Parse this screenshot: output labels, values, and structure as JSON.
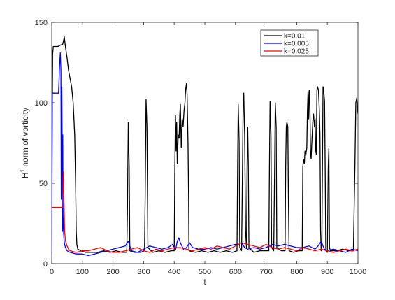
{
  "chart_data": {
    "type": "line",
    "xlabel": "t",
    "ylabel": "H¹ norm of vorticity",
    "ylabel_parts": {
      "pre": "H",
      "sup": "1",
      "post": " norm of vorticity"
    },
    "xlim": [
      0,
      1000
    ],
    "ylim": [
      0,
      150
    ],
    "x_ticks": [
      0,
      100,
      200,
      300,
      400,
      500,
      600,
      700,
      800,
      900,
      1000
    ],
    "y_ticks": [
      0,
      50,
      100,
      150
    ],
    "grid": false,
    "legend_position": "top-right",
    "series": [
      {
        "name": "k=0.01",
        "color": "#000000",
        "points": [
          [
            0,
            5
          ],
          [
            1,
            75
          ],
          [
            3,
            130
          ],
          [
            5,
            135
          ],
          [
            20,
            135
          ],
          [
            30,
            136
          ],
          [
            35,
            136
          ],
          [
            38,
            138
          ],
          [
            41,
            141
          ],
          [
            44,
            136
          ],
          [
            50,
            128
          ],
          [
            55,
            120
          ],
          [
            60,
            115
          ],
          [
            65,
            110
          ],
          [
            70,
            100
          ],
          [
            75,
            80
          ],
          [
            78,
            50
          ],
          [
            80,
            20
          ],
          [
            82,
            12
          ],
          [
            85,
            9
          ],
          [
            95,
            8
          ],
          [
            110,
            7
          ],
          [
            130,
            7
          ],
          [
            150,
            7
          ],
          [
            170,
            8
          ],
          [
            190,
            7
          ],
          [
            210,
            8
          ],
          [
            230,
            7
          ],
          [
            245,
            7
          ],
          [
            247,
            30
          ],
          [
            250,
            88
          ],
          [
            253,
            60
          ],
          [
            255,
            8
          ],
          [
            270,
            7
          ],
          [
            290,
            7
          ],
          [
            303,
            8
          ],
          [
            305,
            40
          ],
          [
            308,
            102
          ],
          [
            311,
            85
          ],
          [
            314,
            10
          ],
          [
            330,
            7
          ],
          [
            350,
            8
          ],
          [
            370,
            7
          ],
          [
            390,
            8
          ],
          [
            400,
            8
          ],
          [
            402,
            60
          ],
          [
            404,
            92
          ],
          [
            406,
            70
          ],
          [
            408,
            88
          ],
          [
            410,
            62
          ],
          [
            413,
            80
          ],
          [
            416,
            78
          ],
          [
            418,
            92
          ],
          [
            420,
            99
          ],
          [
            423,
            72
          ],
          [
            426,
            90
          ],
          [
            429,
            85
          ],
          [
            432,
            95
          ],
          [
            435,
            100
          ],
          [
            437,
            108
          ],
          [
            440,
            112
          ],
          [
            442,
            105
          ],
          [
            445,
            75
          ],
          [
            447,
            40
          ],
          [
            448,
            8
          ],
          [
            470,
            7
          ],
          [
            490,
            8
          ],
          [
            510,
            7
          ],
          [
            530,
            8
          ],
          [
            550,
            7
          ],
          [
            570,
            8
          ],
          [
            590,
            7
          ],
          [
            605,
            8
          ],
          [
            607,
            60
          ],
          [
            609,
            99
          ],
          [
            612,
            75
          ],
          [
            614,
            10
          ],
          [
            620,
            8
          ],
          [
            623,
            60
          ],
          [
            625,
            98
          ],
          [
            627,
            106
          ],
          [
            630,
            80
          ],
          [
            633,
            20
          ],
          [
            636,
            10
          ],
          [
            638,
            60
          ],
          [
            640,
            85
          ],
          [
            642,
            62
          ],
          [
            644,
            10
          ],
          [
            660,
            7
          ],
          [
            680,
            8
          ],
          [
            700,
            8
          ],
          [
            709,
            8
          ],
          [
            711,
            60
          ],
          [
            713,
            101
          ],
          [
            716,
            80
          ],
          [
            718,
            10
          ],
          [
            725,
            8
          ],
          [
            728,
            60
          ],
          [
            730,
            100
          ],
          [
            733,
            85
          ],
          [
            735,
            10
          ],
          [
            750,
            8
          ],
          [
            762,
            8
          ],
          [
            764,
            60
          ],
          [
            766,
            85
          ],
          [
            768,
            88
          ],
          [
            771,
            85
          ],
          [
            773,
            40
          ],
          [
            775,
            8
          ],
          [
            790,
            7
          ],
          [
            805,
            8
          ],
          [
            818,
            8
          ],
          [
            820,
            60
          ],
          [
            822,
            65
          ],
          [
            825,
            62
          ],
          [
            827,
            70
          ],
          [
            830,
            68
          ],
          [
            833,
            72
          ],
          [
            835,
            95
          ],
          [
            837,
            107
          ],
          [
            839,
            90
          ],
          [
            841,
            108
          ],
          [
            843,
            100
          ],
          [
            845,
            70
          ],
          [
            847,
            65
          ],
          [
            850,
            78
          ],
          [
            853,
            90
          ],
          [
            855,
            93
          ],
          [
            858,
            85
          ],
          [
            860,
            90
          ],
          [
            862,
            70
          ],
          [
            864,
            68
          ],
          [
            866,
            108
          ],
          [
            868,
            110
          ],
          [
            871,
            108
          ],
          [
            874,
            95
          ],
          [
            876,
            80
          ],
          [
            878,
            20
          ],
          [
            880,
            8
          ],
          [
            882,
            8
          ],
          [
            884,
            60
          ],
          [
            886,
            110
          ],
          [
            888,
            108
          ],
          [
            891,
            101
          ],
          [
            893,
            60
          ],
          [
            895,
            8
          ],
          [
            900,
            7
          ],
          [
            903,
            60
          ],
          [
            905,
            72
          ],
          [
            907,
            10
          ],
          [
            910,
            8
          ],
          [
            930,
            8
          ],
          [
            950,
            9
          ],
          [
            970,
            8
          ],
          [
            985,
            8
          ],
          [
            990,
            60
          ],
          [
            993,
            100
          ],
          [
            996,
            103
          ],
          [
            998,
            98
          ],
          [
            1000,
            93
          ]
        ]
      },
      {
        "name": "k=0.005",
        "color": "#0000ff",
        "points": [
          [
            0,
            5
          ],
          [
            1,
            60
          ],
          [
            2,
            106
          ],
          [
            5,
            106
          ],
          [
            20,
            106
          ],
          [
            22,
            106
          ],
          [
            24,
            115
          ],
          [
            26,
            125
          ],
          [
            28,
            131
          ],
          [
            30,
            120
          ],
          [
            31,
            40
          ],
          [
            32,
            65
          ],
          [
            33,
            110
          ],
          [
            34,
            78
          ],
          [
            35,
            20
          ],
          [
            36,
            80
          ],
          [
            37,
            30
          ],
          [
            38,
            22
          ],
          [
            40,
            15
          ],
          [
            42,
            12
          ],
          [
            45,
            10
          ],
          [
            50,
            8
          ],
          [
            60,
            7
          ],
          [
            80,
            6
          ],
          [
            100,
            6
          ],
          [
            120,
            5
          ],
          [
            140,
            6
          ],
          [
            160,
            7
          ],
          [
            180,
            8
          ],
          [
            200,
            9
          ],
          [
            220,
            10
          ],
          [
            240,
            11
          ],
          [
            250,
            14
          ],
          [
            255,
            11
          ],
          [
            260,
            8
          ],
          [
            280,
            7
          ],
          [
            300,
            9
          ],
          [
            320,
            11
          ],
          [
            340,
            10
          ],
          [
            360,
            9
          ],
          [
            380,
            10
          ],
          [
            395,
            12
          ],
          [
            400,
            10
          ],
          [
            405,
            9
          ],
          [
            410,
            14
          ],
          [
            415,
            16
          ],
          [
            420,
            13
          ],
          [
            425,
            11
          ],
          [
            430,
            9
          ],
          [
            440,
            10
          ],
          [
            450,
            13
          ],
          [
            460,
            10
          ],
          [
            480,
            9
          ],
          [
            500,
            9
          ],
          [
            520,
            10
          ],
          [
            540,
            9
          ],
          [
            560,
            10
          ],
          [
            580,
            11
          ],
          [
            600,
            12
          ],
          [
            610,
            12
          ],
          [
            620,
            13
          ],
          [
            630,
            10
          ],
          [
            640,
            9
          ],
          [
            660,
            10
          ],
          [
            680,
            9
          ],
          [
            700,
            10
          ],
          [
            720,
            12
          ],
          [
            740,
            11
          ],
          [
            760,
            12
          ],
          [
            780,
            11
          ],
          [
            800,
            10
          ],
          [
            820,
            10
          ],
          [
            840,
            11
          ],
          [
            860,
            9
          ],
          [
            870,
            11
          ],
          [
            880,
            14
          ],
          [
            890,
            9
          ],
          [
            900,
            8
          ],
          [
            920,
            9
          ],
          [
            940,
            8
          ],
          [
            960,
            7
          ],
          [
            980,
            9
          ],
          [
            1000,
            8
          ]
        ]
      },
      {
        "name": "k=0.025",
        "color": "#ff0000",
        "points": [
          [
            0,
            35
          ],
          [
            20,
            35
          ],
          [
            35,
            35
          ],
          [
            38,
            57
          ],
          [
            40,
            40
          ],
          [
            42,
            20
          ],
          [
            45,
            14
          ],
          [
            50,
            11
          ],
          [
            55,
            9
          ],
          [
            60,
            8
          ],
          [
            80,
            7
          ],
          [
            100,
            8
          ],
          [
            120,
            8
          ],
          [
            140,
            9
          ],
          [
            160,
            10
          ],
          [
            180,
            8
          ],
          [
            200,
            7
          ],
          [
            220,
            7
          ],
          [
            240,
            8
          ],
          [
            260,
            9
          ],
          [
            280,
            10
          ],
          [
            300,
            8
          ],
          [
            320,
            7
          ],
          [
            340,
            9
          ],
          [
            360,
            8
          ],
          [
            380,
            9
          ],
          [
            400,
            10
          ],
          [
            420,
            10
          ],
          [
            440,
            9
          ],
          [
            460,
            8
          ],
          [
            480,
            9
          ],
          [
            500,
            10
          ],
          [
            520,
            9
          ],
          [
            540,
            11
          ],
          [
            560,
            10
          ],
          [
            580,
            9
          ],
          [
            600,
            11
          ],
          [
            620,
            13
          ],
          [
            640,
            12
          ],
          [
            660,
            11
          ],
          [
            680,
            10
          ],
          [
            700,
            12
          ],
          [
            720,
            10
          ],
          [
            740,
            9
          ],
          [
            760,
            10
          ],
          [
            780,
            9
          ],
          [
            800,
            8
          ],
          [
            820,
            10
          ],
          [
            840,
            9
          ],
          [
            860,
            8
          ],
          [
            880,
            9
          ],
          [
            900,
            8
          ],
          [
            920,
            7
          ],
          [
            940,
            8
          ],
          [
            960,
            9
          ],
          [
            980,
            8
          ],
          [
            1000,
            9
          ]
        ]
      }
    ]
  }
}
